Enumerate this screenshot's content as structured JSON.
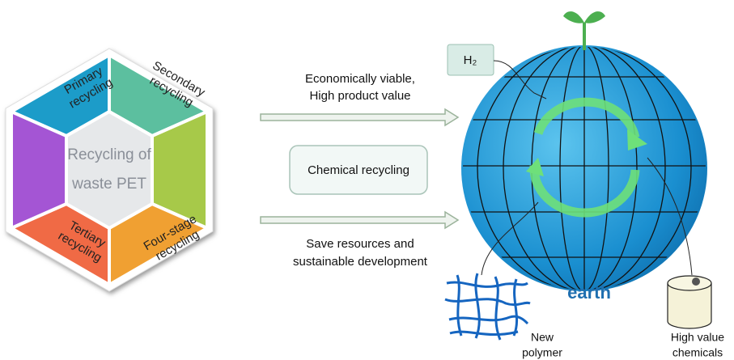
{
  "hexagon": {
    "center_lines": [
      "Recycling of",
      "waste PET"
    ],
    "segments": [
      {
        "lines": [
          "Primary",
          "recycling"
        ]
      },
      {
        "lines": [
          "Secondary",
          "recycling"
        ]
      },
      {
        "lines": [
          "Tertiary",
          "recycling"
        ]
      },
      {
        "lines": [
          "Four-stage",
          "recycling"
        ]
      }
    ]
  },
  "arrows": {
    "top": {
      "lines": [
        "Economically viable,",
        "High product value"
      ]
    },
    "bottom": {
      "lines": [
        "Save resources and",
        "sustainable development"
      ]
    }
  },
  "center_box": {
    "label": "Chemical recycling"
  },
  "earth": {
    "label": "earth",
    "gas": "H₂"
  },
  "outputs": [
    {
      "lines": [
        "New",
        "polymer"
      ]
    },
    {
      "lines": [
        "High value",
        "chemicals"
      ]
    }
  ]
}
